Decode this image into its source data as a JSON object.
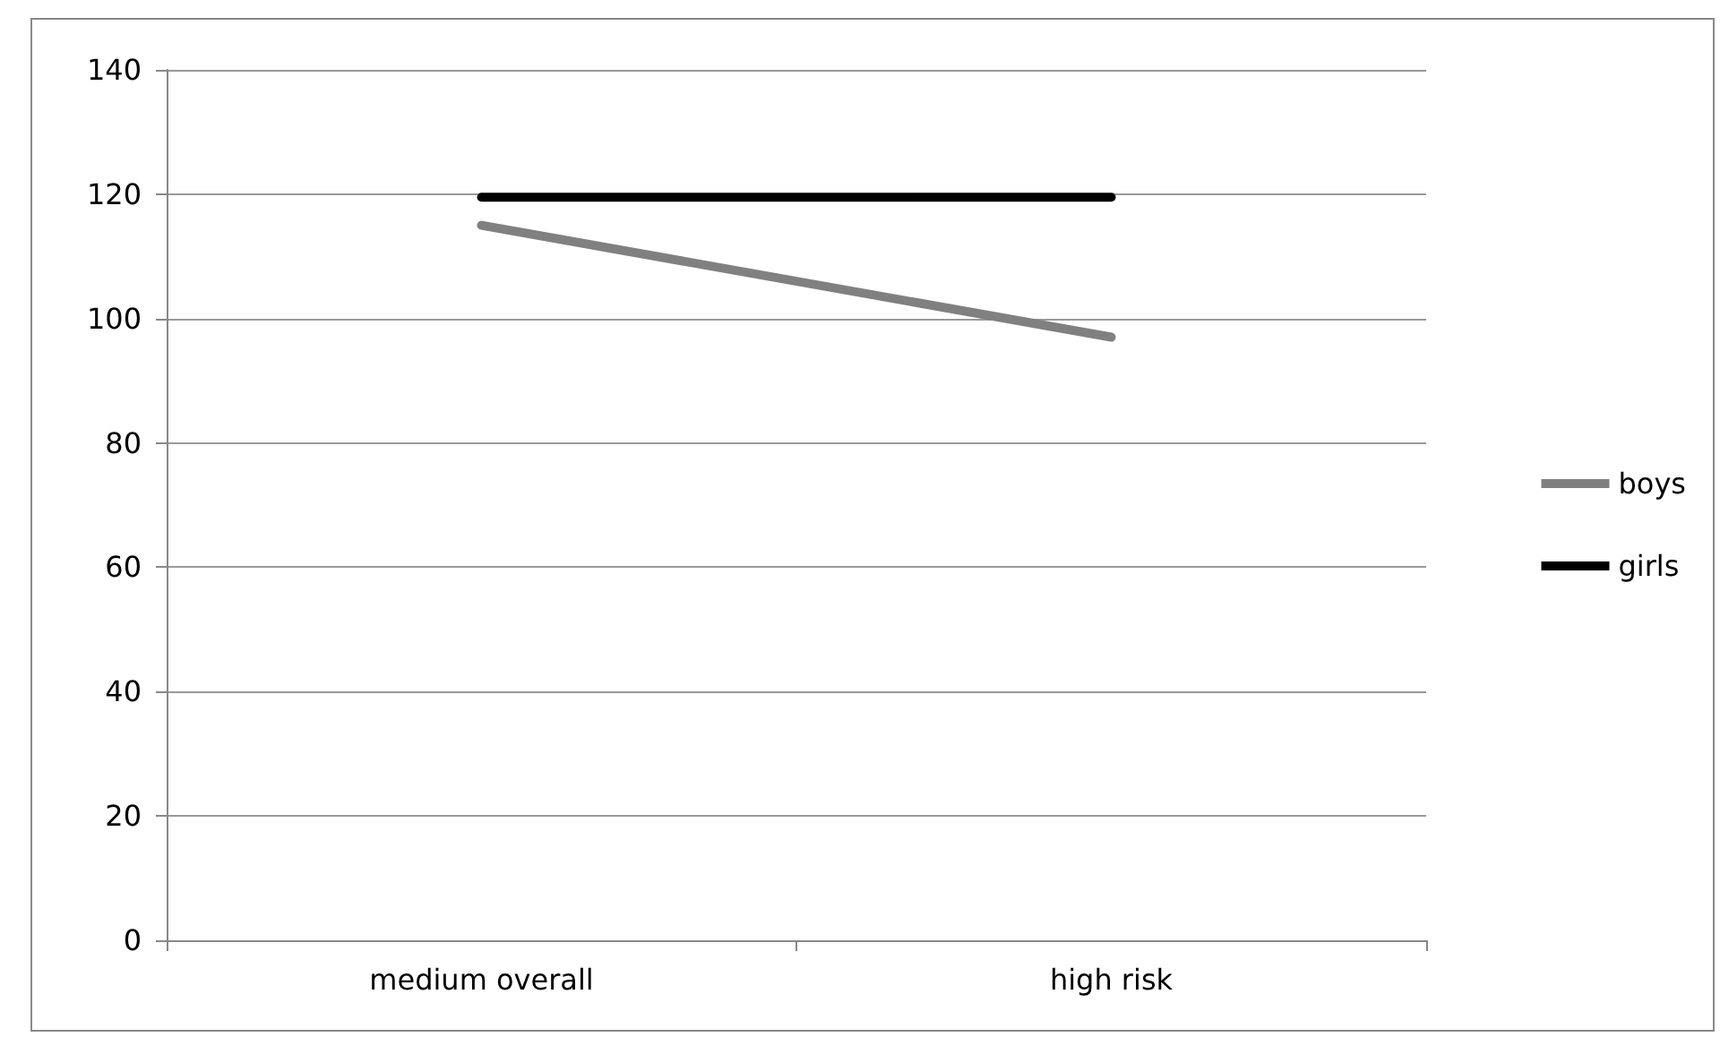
{
  "chart_data": {
    "type": "line",
    "categories": [
      "medium overall",
      "high risk"
    ],
    "series": [
      {
        "name": "boys",
        "color": "#808080",
        "values": [
          115,
          97
        ]
      },
      {
        "name": "girls",
        "color": "#000000",
        "values": [
          119.5,
          119.5
        ]
      }
    ],
    "ylim": [
      0,
      140
    ],
    "yticks": [
      0,
      20,
      40,
      60,
      80,
      100,
      120,
      140
    ],
    "grid": "y",
    "legend": "right",
    "marker": "none",
    "line_style": "solid"
  }
}
